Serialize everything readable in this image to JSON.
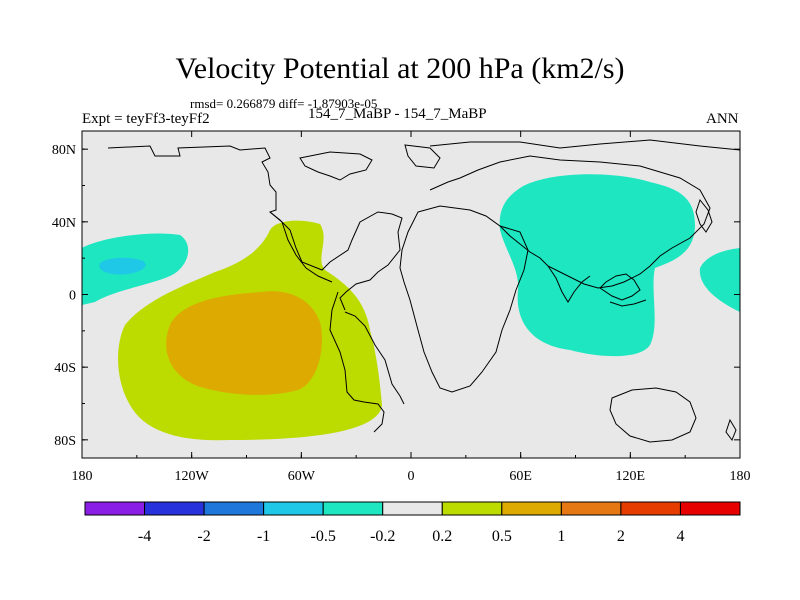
{
  "chart_data": {
    "type": "heatmap",
    "title": "Velocity Potential at 200 hPa (km2/s)",
    "subtitle": "rmsd= 0.266879 diff= -1.87903e-05",
    "left_label": "Expt = teyFf3-teyFf2",
    "center_label": "154_7_MaBP - 154_7_MaBP",
    "right_label": "ANN",
    "xlim": [
      -180,
      180
    ],
    "ylim": [
      -90,
      90
    ],
    "x_ticks": [
      {
        "value": -180,
        "label": "180"
      },
      {
        "value": -120,
        "label": "120W"
      },
      {
        "value": -60,
        "label": "60W"
      },
      {
        "value": 0,
        "label": "0"
      },
      {
        "value": 60,
        "label": "60E"
      },
      {
        "value": 120,
        "label": "120E"
      },
      {
        "value": 180,
        "label": "180"
      }
    ],
    "y_ticks": [
      {
        "value": 80,
        "label": "80N"
      },
      {
        "value": 40,
        "label": "40N"
      },
      {
        "value": 0,
        "label": "0"
      },
      {
        "value": -40,
        "label": "40S"
      },
      {
        "value": -80,
        "label": "80S"
      }
    ],
    "contour_levels": [
      -4,
      -2,
      -1,
      -0.5,
      -0.2,
      0.2,
      0.5,
      1,
      2,
      4
    ],
    "colorbar_labels": [
      "-4",
      "-2",
      "-1",
      "-0.5",
      "-0.2",
      "0.2",
      "0.5",
      "1",
      "2",
      "4"
    ],
    "colorbar_colors": [
      "#8a1ee6",
      "#2832dc",
      "#1e78dc",
      "#1ec8e6",
      "#1ee6c0",
      "#e8e8e8",
      "#bcdc00",
      "#dcaa00",
      "#e67814",
      "#e63c00",
      "#e60000"
    ],
    "regions": [
      {
        "name": "positive-0.2-western-hemisphere",
        "range": "0.2 to 0.5",
        "color": "#bcdc00",
        "center_lon": -85,
        "center_lat": -25
      },
      {
        "name": "positive-0.5-core",
        "range": "0.5 to 1",
        "color": "#dcaa00",
        "center_lon": -95,
        "center_lat": -25
      },
      {
        "name": "negative-asia-pacific",
        "range": "-0.5 to -0.2",
        "color": "#1ee6c0",
        "center_lon": 95,
        "center_lat": 20
      },
      {
        "name": "negative-central-pacific",
        "range": "-0.5 to -0.2",
        "color": "#1ee6c0",
        "center_lon": -160,
        "center_lat": 13
      },
      {
        "name": "negative-central-pacific-core",
        "range": "-1 to -0.5",
        "color": "#1ec8e6",
        "center_lon": -165,
        "center_lat": 16
      },
      {
        "name": "negative-east-pacific-edge",
        "range": "-0.5 to -0.2",
        "color": "#1ee6c0",
        "center_lon": 172,
        "center_lat": 12
      }
    ]
  }
}
